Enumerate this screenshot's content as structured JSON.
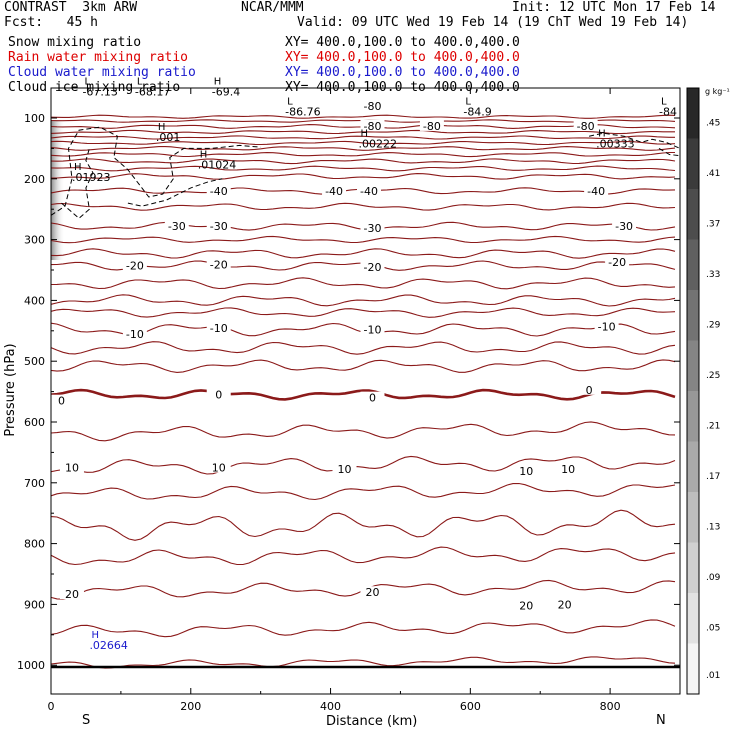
{
  "header": {
    "left_title": "CONTRAST  3km ARW",
    "center_title": "NCAR/MMM",
    "init": "Init: 12 UTC Mon 17 Feb 14",
    "fcst": "Fcst:   45 h",
    "valid": "Valid: 09 UTC Wed 19 Feb 14 (19 ChT Wed 19 Feb 14)"
  },
  "fields": [
    {
      "label": "Snow mixing ratio",
      "xy": "XY= 400.0,100.0 to 400.0,400.0",
      "color": "#000000"
    },
    {
      "label": "Rain water mixing ratio",
      "xy": "XY= 400.0,100.0 to 400.0,400.0",
      "color": "#dd0000"
    },
    {
      "label": "Cloud water mixing ratio",
      "xy": "XY= 400.0,100.0 to 400.0,400.0",
      "color": "#1a1acc"
    },
    {
      "label": "Cloud ice mixing ratio",
      "xy": "XY= 400.0,100.0 to 400.0,400.0",
      "color": "#000000"
    }
  ],
  "colorbar": {
    "units": "g kg⁻¹",
    "ticks": [
      ".45",
      ".41",
      ".37",
      ".33",
      ".29",
      ".25",
      ".21",
      ".17",
      ".13",
      ".09",
      ".05",
      ".01"
    ]
  },
  "chart_data": {
    "type": "contour-cross-section",
    "xlabel": "Distance (km)",
    "ylabel": "Pressure (hPa)",
    "xlim": [
      0,
      900
    ],
    "ylim": [
      1050,
      50
    ],
    "x_ticks": [
      0,
      200,
      400,
      600,
      800
    ],
    "y_ticks": [
      100,
      200,
      300,
      400,
      500,
      600,
      700,
      800,
      900,
      1000
    ],
    "end_labels": {
      "left": "S",
      "right": "N"
    },
    "temperature_contours": [
      {
        "value": -80,
        "labels": [
          {
            "text": "-80",
            "x": 460,
            "p": 80
          },
          {
            "text": "-80",
            "x": 460,
            "p": 113
          },
          {
            "text": "-80",
            "x": 545,
            "p": 113
          },
          {
            "text": "-80",
            "x": 765,
            "p": 113
          }
        ]
      },
      {
        "value": -40,
        "labels": [
          {
            "text": "-40",
            "x": 240,
            "p": 220
          },
          {
            "text": "-40",
            "x": 405,
            "p": 220
          },
          {
            "text": "-40",
            "x": 455,
            "p": 220
          },
          {
            "text": "-40",
            "x": 780,
            "p": 220
          }
        ]
      },
      {
        "value": -30,
        "labels": [
          {
            "text": "-30",
            "x": 180,
            "p": 278
          },
          {
            "text": "-30",
            "x": 240,
            "p": 278
          },
          {
            "text": "-30",
            "x": 460,
            "p": 281
          },
          {
            "text": "-30",
            "x": 820,
            "p": 278
          }
        ]
      },
      {
        "value": -20,
        "labels": [
          {
            "text": "-20",
            "x": 120,
            "p": 343
          },
          {
            "text": "-20",
            "x": 240,
            "p": 341
          },
          {
            "text": "-20",
            "x": 460,
            "p": 345
          },
          {
            "text": "-20",
            "x": 810,
            "p": 337
          }
        ]
      },
      {
        "value": -10,
        "labels": [
          {
            "text": "-10",
            "x": 120,
            "p": 455
          },
          {
            "text": "-10",
            "x": 240,
            "p": 445
          },
          {
            "text": "-10",
            "x": 460,
            "p": 448
          },
          {
            "text": "-10",
            "x": 795,
            "p": 443
          }
        ]
      },
      {
        "value": 0,
        "labels": [
          {
            "text": "0",
            "x": 15,
            "p": 565
          },
          {
            "text": "0",
            "x": 240,
            "p": 555
          },
          {
            "text": "0",
            "x": 460,
            "p": 560
          },
          {
            "text": "0",
            "x": 770,
            "p": 547
          }
        ]
      },
      {
        "value": 10,
        "labels": [
          {
            "text": "10",
            "x": 30,
            "p": 675
          },
          {
            "text": "10",
            "x": 240,
            "p": 675
          },
          {
            "text": "10",
            "x": 420,
            "p": 677
          },
          {
            "text": "10",
            "x": 680,
            "p": 681
          },
          {
            "text": "10",
            "x": 740,
            "p": 677
          }
        ]
      },
      {
        "value": 20,
        "labels": [
          {
            "text": "20",
            "x": 30,
            "p": 883
          },
          {
            "text": "20",
            "x": 460,
            "p": 880
          },
          {
            "text": "20",
            "x": 680,
            "p": 902
          },
          {
            "text": "20",
            "x": 735,
            "p": 900
          }
        ]
      }
    ],
    "extrema": [
      {
        "type": "L",
        "value": "-67.13",
        "x": 45,
        "p": 55,
        "color": "#000000"
      },
      {
        "type": "L",
        "value": "-68.17",
        "x": 120,
        "p": 55,
        "color": "#000000"
      },
      {
        "type": "H",
        "value": "-69.4",
        "x": 230,
        "p": 55,
        "color": "#000000"
      },
      {
        "type": "L",
        "value": "-86.76",
        "x": 335,
        "p": 88,
        "color": "#000000"
      },
      {
        "type": "L",
        "value": "-84.9",
        "x": 590,
        "p": 88,
        "color": "#000000"
      },
      {
        "type": "L",
        "value": "-84",
        "x": 870,
        "p": 88,
        "color": "#000000"
      },
      {
        "type": "H",
        "value": ".001",
        "x": 150,
        "p": 130,
        "color": "#000000"
      },
      {
        "type": "H",
        "value": ".00222",
        "x": 440,
        "p": 140,
        "color": "#000000"
      },
      {
        "type": "H",
        "value": ".00333",
        "x": 780,
        "p": 140,
        "color": "#000000"
      },
      {
        "type": "H",
        "value": ".01024",
        "x": 210,
        "p": 175,
        "color": "#000000"
      },
      {
        "type": "H",
        "value": ".01923",
        "x": 30,
        "p": 195,
        "color": "#000000"
      },
      {
        "type": "H",
        "value": ".02664",
        "x": 55,
        "p": 965,
        "color": "#1a1acc"
      }
    ]
  }
}
